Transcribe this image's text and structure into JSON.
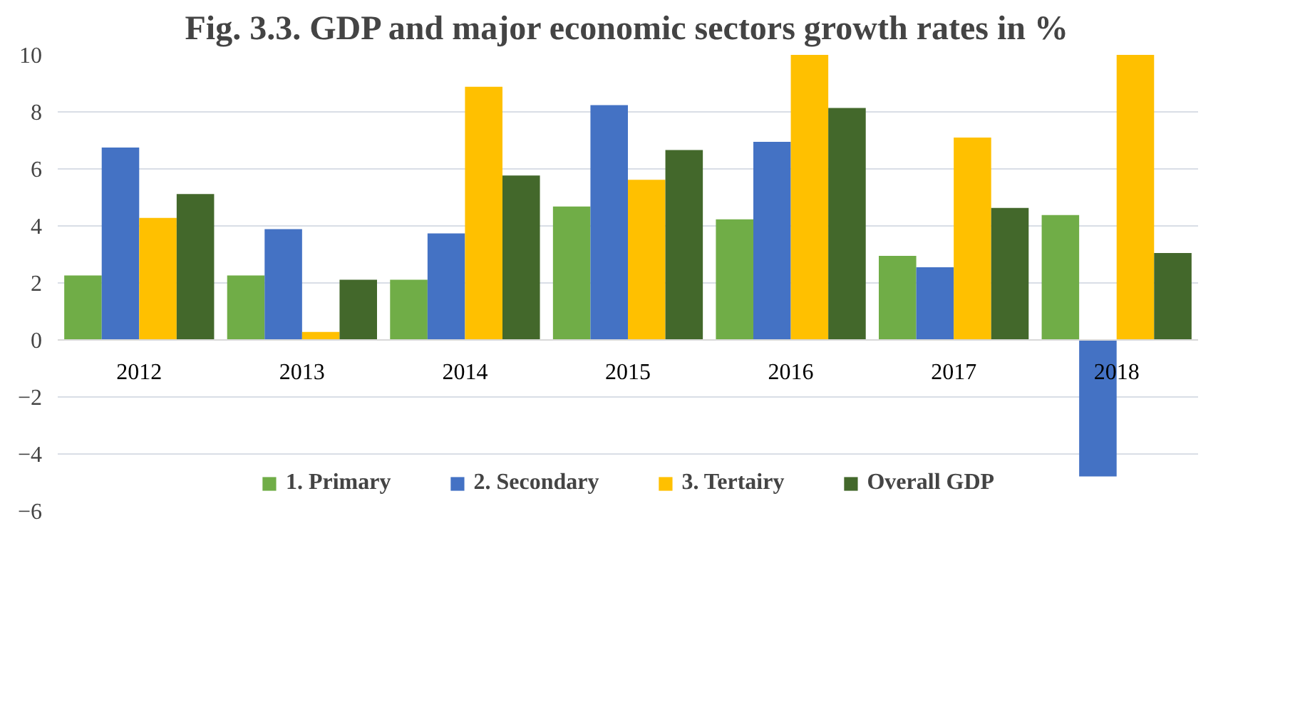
{
  "chart_data": {
    "type": "bar",
    "title": "Fig. 3.3. GDP and major economic sectors growth rates in %",
    "categories": [
      "2012",
      "2013",
      "2014",
      "2015",
      "2016",
      "2017",
      "2018"
    ],
    "series": [
      {
        "name": "1. Primary",
        "color": "#70ad47",
        "values": [
          2.26,
          2.26,
          2.11,
          4.68,
          4.23,
          2.95,
          4.38
        ]
      },
      {
        "name": "2. Secondary",
        "color": "#4472c4",
        "values": [
          6.75,
          3.89,
          3.74,
          8.24,
          6.95,
          2.55,
          -4.79
        ]
      },
      {
        "name": "3. Tertairy",
        "color": "#ffc000",
        "values": [
          4.28,
          0.28,
          8.88,
          5.62,
          10,
          7.1,
          10
        ]
      },
      {
        "name": "Overall GDP",
        "color": "#43682b",
        "values": [
          5.12,
          2.11,
          5.77,
          6.66,
          8.14,
          4.63,
          3.05
        ]
      }
    ],
    "ylim": [
      -6,
      10
    ],
    "yticks": [
      -6,
      -4,
      -2,
      0,
      2,
      4,
      6,
      8,
      10
    ],
    "grid": "y",
    "legend": "bottom"
  }
}
